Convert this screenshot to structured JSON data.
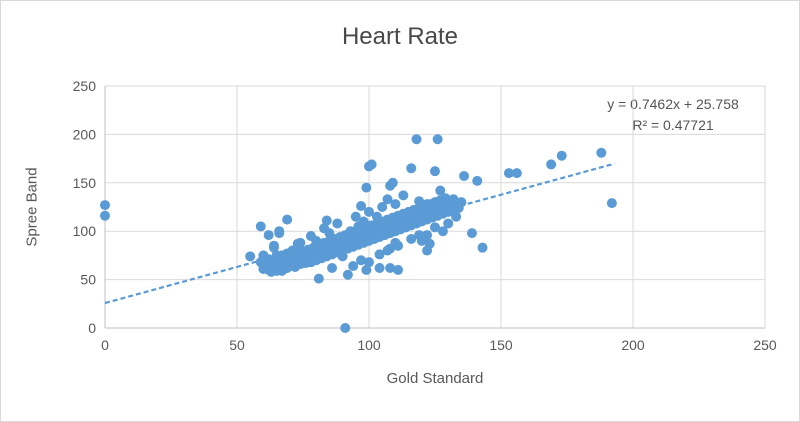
{
  "chart": {
    "title": "Heart Rate",
    "background_color": "#ffffff",
    "border_color": "#d9d9d9",
    "gridline_color": "#d9d9d9",
    "axis_line_color": "#bfbfbf",
    "text_color": "#595959"
  },
  "chart_data": {
    "type": "scatter",
    "title": "Heart Rate",
    "xlabel": "Gold Standard",
    "ylabel": "Spree Band",
    "xlim": [
      0,
      250
    ],
    "ylim": [
      0,
      250
    ],
    "x_ticks": [
      0,
      50,
      100,
      150,
      200,
      250
    ],
    "y_ticks": [
      0,
      50,
      100,
      150,
      200,
      250
    ],
    "grid": true,
    "legend": "none",
    "marker_color": "#5b9bd5",
    "marker_radius": 5,
    "trendline": {
      "equation": "y = 0.7462x + 25.758",
      "r2_label": "R² = 0.47721",
      "slope": 0.7462,
      "intercept": 25.758,
      "x_start": 0,
      "x_end": 193,
      "color": "#5b9bd5",
      "style": "dashed"
    },
    "points": [
      [
        0,
        127
      ],
      [
        0,
        116
      ],
      [
        55,
        74
      ],
      [
        59,
        105
      ],
      [
        61,
        62
      ],
      [
        62,
        96
      ],
      [
        64,
        83
      ],
      [
        64,
        85
      ],
      [
        65,
        59
      ],
      [
        66,
        98
      ],
      [
        66,
        100
      ],
      [
        69,
        62
      ],
      [
        69,
        112
      ],
      [
        71,
        80
      ],
      [
        73,
        87
      ],
      [
        74,
        88
      ],
      [
        78,
        95
      ],
      [
        81,
        51
      ],
      [
        83,
        103
      ],
      [
        84,
        111
      ],
      [
        91,
        0
      ],
      [
        92,
        55
      ],
      [
        93,
        100
      ],
      [
        97,
        126
      ],
      [
        99,
        145
      ],
      [
        100,
        167
      ],
      [
        101,
        103
      ],
      [
        101,
        169
      ],
      [
        108,
        147
      ],
      [
        109,
        150
      ],
      [
        111,
        85
      ],
      [
        116,
        165
      ],
      [
        118,
        195
      ],
      [
        119,
        131
      ],
      [
        120,
        90
      ],
      [
        122,
        80
      ],
      [
        122,
        128
      ],
      [
        123,
        87
      ],
      [
        125,
        162
      ],
      [
        126,
        195
      ],
      [
        127,
        142
      ],
      [
        130,
        121
      ],
      [
        132,
        133
      ],
      [
        136,
        157
      ],
      [
        139,
        98
      ],
      [
        141,
        152
      ],
      [
        143,
        83
      ],
      [
        153,
        160
      ],
      [
        156,
        160
      ],
      [
        169,
        169
      ],
      [
        173,
        178
      ],
      [
        188,
        181
      ],
      [
        192,
        129
      ],
      [
        59,
        68
      ],
      [
        60,
        61
      ],
      [
        60,
        75
      ],
      [
        61,
        66
      ],
      [
        62,
        60
      ],
      [
        62,
        71
      ],
      [
        63,
        64
      ],
      [
        63,
        58
      ],
      [
        64,
        69
      ],
      [
        64,
        60
      ],
      [
        65,
        66
      ],
      [
        65,
        75
      ],
      [
        66,
        62
      ],
      [
        66,
        70
      ],
      [
        67,
        67
      ],
      [
        67,
        75
      ],
      [
        67,
        59
      ],
      [
        68,
        64
      ],
      [
        68,
        71
      ],
      [
        69,
        69
      ],
      [
        69,
        77
      ],
      [
        70,
        64
      ],
      [
        70,
        72
      ],
      [
        71,
        68
      ],
      [
        71,
        76
      ],
      [
        72,
        63
      ],
      [
        72,
        71
      ],
      [
        73,
        69
      ],
      [
        73,
        78
      ],
      [
        74,
        66
      ],
      [
        74,
        74
      ],
      [
        75,
        71
      ],
      [
        75,
        79
      ],
      [
        76,
        67
      ],
      [
        76,
        76
      ],
      [
        77,
        72
      ],
      [
        77,
        81
      ],
      [
        78,
        68
      ],
      [
        78,
        77
      ],
      [
        79,
        74
      ],
      [
        79,
        83
      ],
      [
        80,
        70
      ],
      [
        80,
        79
      ],
      [
        81,
        76
      ],
      [
        81,
        85
      ],
      [
        82,
        72
      ],
      [
        82,
        81
      ],
      [
        83,
        78
      ],
      [
        83,
        88
      ],
      [
        84,
        74
      ],
      [
        84,
        84
      ],
      [
        85,
        80
      ],
      [
        85,
        90
      ],
      [
        86,
        76
      ],
      [
        86,
        86
      ],
      [
        87,
        82
      ],
      [
        87,
        92
      ],
      [
        88,
        78
      ],
      [
        88,
        88
      ],
      [
        89,
        84
      ],
      [
        89,
        94
      ],
      [
        90,
        80
      ],
      [
        90,
        90
      ],
      [
        91,
        86
      ],
      [
        91,
        96
      ],
      [
        92,
        82
      ],
      [
        92,
        92
      ],
      [
        93,
        88
      ],
      [
        93,
        98
      ],
      [
        94,
        84
      ],
      [
        94,
        94
      ],
      [
        95,
        90
      ],
      [
        95,
        100
      ],
      [
        96,
        86
      ],
      [
        96,
        96
      ],
      [
        97,
        92
      ],
      [
        97,
        102
      ],
      [
        98,
        88
      ],
      [
        98,
        98
      ],
      [
        99,
        94
      ],
      [
        99,
        104
      ],
      [
        100,
        90
      ],
      [
        100,
        100
      ],
      [
        101,
        96
      ],
      [
        101,
        106
      ],
      [
        102,
        92
      ],
      [
        102,
        102
      ],
      [
        103,
        98
      ],
      [
        103,
        108
      ],
      [
        104,
        94
      ],
      [
        104,
        104
      ],
      [
        105,
        100
      ],
      [
        105,
        110
      ],
      [
        106,
        96
      ],
      [
        106,
        106
      ],
      [
        107,
        102
      ],
      [
        107,
        112
      ],
      [
        108,
        98
      ],
      [
        108,
        108
      ],
      [
        109,
        104
      ],
      [
        109,
        114
      ],
      [
        110,
        100
      ],
      [
        110,
        110
      ],
      [
        111,
        106
      ],
      [
        111,
        116
      ],
      [
        112,
        102
      ],
      [
        112,
        112
      ],
      [
        113,
        108
      ],
      [
        113,
        118
      ],
      [
        114,
        104
      ],
      [
        114,
        114
      ],
      [
        115,
        110
      ],
      [
        115,
        120
      ],
      [
        116,
        106
      ],
      [
        116,
        116
      ],
      [
        117,
        112
      ],
      [
        117,
        122
      ],
      [
        118,
        108
      ],
      [
        118,
        118
      ],
      [
        119,
        114
      ],
      [
        119,
        124
      ],
      [
        120,
        110
      ],
      [
        120,
        120
      ],
      [
        121,
        116
      ],
      [
        121,
        126
      ],
      [
        122,
        112
      ],
      [
        122,
        122
      ],
      [
        123,
        118
      ],
      [
        123,
        128
      ],
      [
        124,
        114
      ],
      [
        124,
        124
      ],
      [
        125,
        120
      ],
      [
        125,
        130
      ],
      [
        126,
        116
      ],
      [
        126,
        126
      ],
      [
        127,
        122
      ],
      [
        127,
        132
      ],
      [
        128,
        118
      ],
      [
        128,
        128
      ],
      [
        129,
        124
      ],
      [
        129,
        134
      ],
      [
        130,
        120
      ],
      [
        130,
        130
      ],
      [
        131,
        126
      ],
      [
        132,
        122
      ],
      [
        133,
        128
      ],
      [
        134,
        124
      ],
      [
        135,
        130
      ],
      [
        80,
        90
      ],
      [
        85,
        98
      ],
      [
        86,
        62
      ],
      [
        88,
        108
      ],
      [
        90,
        74
      ],
      [
        94,
        64
      ],
      [
        95,
        115
      ],
      [
        96,
        105
      ],
      [
        97,
        70
      ],
      [
        98,
        110
      ],
      [
        99,
        60
      ],
      [
        100,
        68
      ],
      [
        100,
        120
      ],
      [
        103,
        115
      ],
      [
        104,
        62
      ],
      [
        104,
        76
      ],
      [
        105,
        125
      ],
      [
        107,
        80
      ],
      [
        107,
        133
      ],
      [
        108,
        82
      ],
      [
        108,
        62
      ],
      [
        110,
        88
      ],
      [
        110,
        128
      ],
      [
        111,
        60
      ],
      [
        113,
        137
      ],
      [
        116,
        92
      ],
      [
        119,
        96
      ],
      [
        122,
        96
      ],
      [
        125,
        104
      ],
      [
        128,
        100
      ],
      [
        130,
        108
      ],
      [
        133,
        115
      ]
    ]
  }
}
